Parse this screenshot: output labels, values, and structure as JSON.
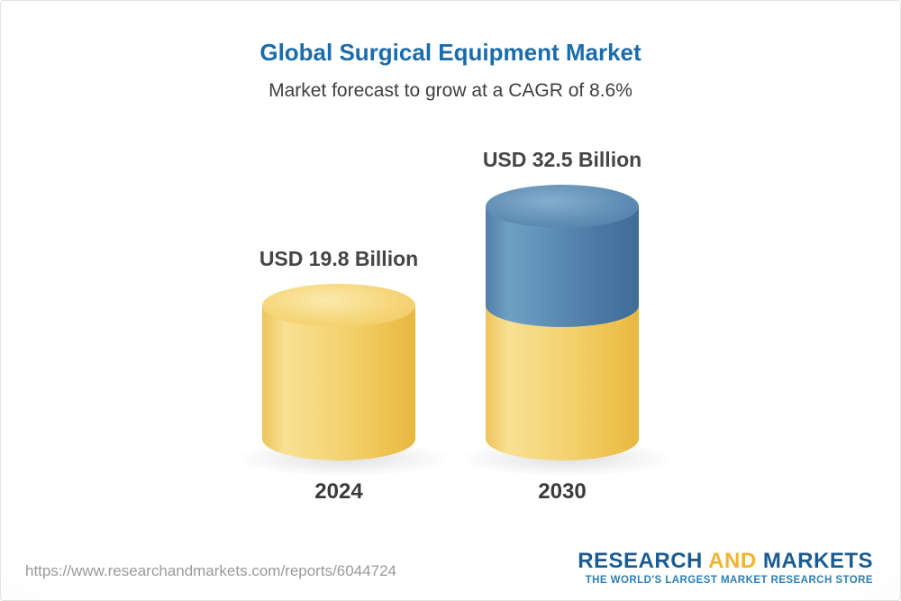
{
  "page": {
    "title": "Global Surgical Equipment Market",
    "subtitle": "Market forecast to grow at a CAGR of 8.6%",
    "source_url": "https://www.researchandmarkets.com/reports/6044724"
  },
  "logo": {
    "word1": "RESEARCH",
    "word2": "AND",
    "word3": "MARKETS",
    "tagline": "THE WORLD'S LARGEST MARKET RESEARCH STORE"
  },
  "colors": {
    "title_blue": "#1b6cab",
    "bar_yellow": "#f2c94c",
    "bar_blue": "#4a78a3",
    "label_gray": "#454545",
    "url_gray": "#9a9a9a",
    "logo_blue": "#1a5c92",
    "logo_yellow": "#f0b431"
  },
  "chart_data": {
    "type": "bar",
    "title": "Global Surgical Equipment Market",
    "subtitle": "Market forecast to grow at a CAGR of 8.6%",
    "cagr_percent": 8.6,
    "unit": "USD Billion",
    "categories": [
      "2024",
      "2030"
    ],
    "values": [
      19.8,
      32.5
    ],
    "value_labels": [
      "USD 19.8 Billion",
      "USD 32.5 Billion"
    ],
    "ylim": [
      0,
      32.5
    ],
    "grid": false,
    "legend": false,
    "bars": [
      {
        "category": "2024",
        "total": 19.8,
        "segments": [
          {
            "value": 19.8,
            "color": "yellow"
          }
        ]
      },
      {
        "category": "2030",
        "total": 32.5,
        "segments": [
          {
            "value": 19.8,
            "color": "yellow"
          },
          {
            "value": 12.7,
            "color": "blue"
          }
        ]
      }
    ]
  }
}
